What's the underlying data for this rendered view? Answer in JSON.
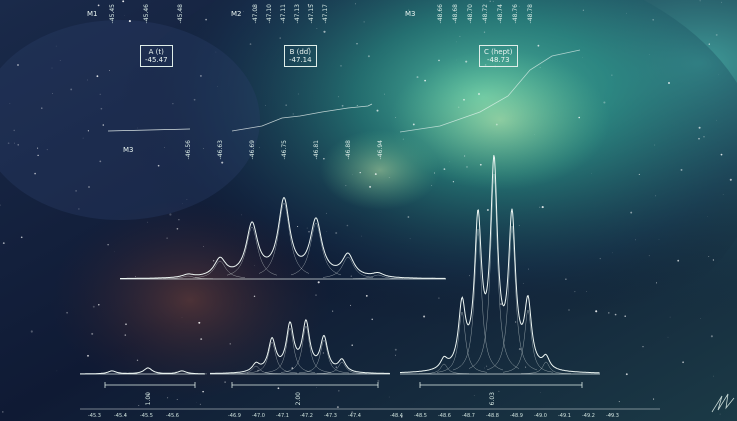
{
  "scene": {
    "multiplet_labels": [
      "M1",
      "M2",
      "M3",
      "M3"
    ],
    "peak_boxes": [
      {
        "name": "A (t)",
        "value": "-45.47"
      },
      {
        "name": "B (dd)",
        "value": "-47.14"
      },
      {
        "name": "C (hept)",
        "value": "-48.73"
      }
    ],
    "top_shifts_m1": [
      "-45.45",
      "-45.46",
      "-45.48"
    ],
    "top_shifts_m2": [
      "-47.08",
      "-47.10",
      "-47.11",
      "-47.13",
      "-47.15",
      "-47.17"
    ],
    "top_shifts_m3": [
      "-48.66",
      "-48.68",
      "-48.70",
      "-48.72",
      "-48.74",
      "-48.76",
      "-48.78"
    ],
    "mid_shifts_m3": [
      "-46.56",
      "-46.63",
      "-46.69",
      "-46.75",
      "-46.81",
      "-46.88",
      "-46.94"
    ],
    "integrals": [
      "1.00",
      "2.00",
      "6.03"
    ],
    "axis_ticks": [
      "-45.3",
      "-45.4",
      "-45.5",
      "-45.6",
      "-46.9",
      "-47.0",
      "-47.1",
      "-47.2",
      "-47.3",
      "-47.4",
      "-48.4",
      "-48.5",
      "-48.6",
      "-48.7",
      "-48.8",
      "-48.9",
      "-49.0",
      "-49.1",
      "-49.2",
      "-49.3"
    ],
    "colors": {
      "spectrum": "#eef7f4",
      "nebula": "#3fbfa2",
      "space": "#0b1226"
    }
  }
}
